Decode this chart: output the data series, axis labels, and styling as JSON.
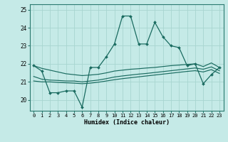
{
  "title": "",
  "xlabel": "Humidex (Indice chaleur)",
  "bg_color": "#c5eae7",
  "grid_color": "#a8d5d0",
  "line_color": "#1a6b60",
  "spine_color": "#2a7a6f",
  "xlim": [
    -0.5,
    23.5
  ],
  "ylim": [
    19.4,
    25.3
  ],
  "yticks": [
    20,
    21,
    22,
    23,
    24,
    25
  ],
  "xticks": [
    0,
    1,
    2,
    3,
    4,
    5,
    6,
    7,
    8,
    9,
    10,
    11,
    12,
    13,
    14,
    15,
    16,
    17,
    18,
    19,
    20,
    21,
    22,
    23
  ],
  "main_line_x": [
    0,
    1,
    2,
    3,
    4,
    5,
    6,
    7,
    8,
    9,
    10,
    11,
    12,
    13,
    14,
    15,
    16,
    17,
    18,
    19,
    20,
    21,
    22,
    23
  ],
  "main_line_y": [
    21.9,
    21.6,
    20.4,
    20.4,
    20.5,
    20.5,
    19.6,
    21.8,
    21.8,
    22.4,
    23.1,
    24.65,
    24.65,
    23.1,
    23.1,
    24.3,
    23.5,
    23.0,
    22.9,
    21.9,
    22.0,
    20.9,
    21.4,
    21.8
  ],
  "upper_line_x": [
    0,
    1,
    2,
    3,
    4,
    5,
    6,
    7,
    8,
    9,
    10,
    11,
    12,
    13,
    14,
    15,
    16,
    17,
    18,
    19,
    20,
    21,
    22,
    23
  ],
  "upper_line_y": [
    21.9,
    21.75,
    21.65,
    21.55,
    21.45,
    21.4,
    21.35,
    21.38,
    21.42,
    21.5,
    21.6,
    21.65,
    21.7,
    21.73,
    21.77,
    21.8,
    21.85,
    21.9,
    21.93,
    21.97,
    22.0,
    21.85,
    22.05,
    21.8
  ],
  "mid_line_x": [
    0,
    1,
    2,
    3,
    4,
    5,
    6,
    7,
    8,
    9,
    10,
    11,
    12,
    13,
    14,
    15,
    16,
    17,
    18,
    19,
    20,
    21,
    22,
    23
  ],
  "mid_line_y": [
    21.3,
    21.15,
    21.1,
    21.08,
    21.05,
    21.05,
    21.0,
    21.05,
    21.1,
    21.18,
    21.27,
    21.33,
    21.38,
    21.43,
    21.47,
    21.52,
    21.57,
    21.62,
    21.67,
    21.72,
    21.77,
    21.7,
    21.83,
    21.62
  ],
  "lower_line_x": [
    0,
    1,
    2,
    3,
    4,
    5,
    6,
    7,
    8,
    9,
    10,
    11,
    12,
    13,
    14,
    15,
    16,
    17,
    18,
    19,
    20,
    21,
    22,
    23
  ],
  "lower_line_y": [
    21.05,
    21.0,
    21.0,
    20.97,
    20.95,
    20.93,
    20.9,
    20.93,
    20.98,
    21.05,
    21.12,
    21.18,
    21.23,
    21.28,
    21.33,
    21.38,
    21.43,
    21.48,
    21.53,
    21.58,
    21.62,
    21.55,
    21.68,
    21.47
  ]
}
